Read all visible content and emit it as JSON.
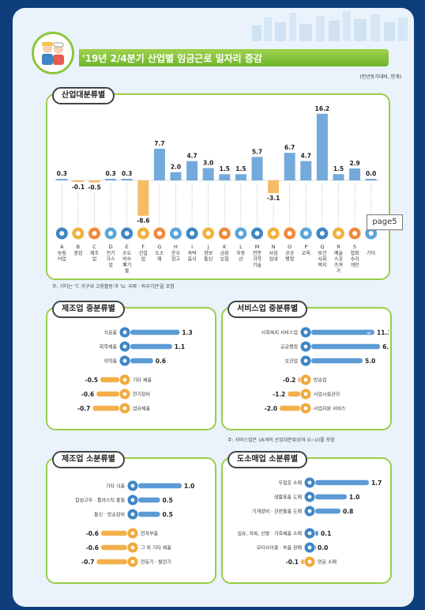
{
  "title": "'19년 2/4분기 산업별 임금근로 일자리 증감",
  "unit": "(전년동기대비, 만개)",
  "page_label": "page5",
  "note1": "주: 기타는 'T. 가구내 고용활동'과 'U. 국제 · 외국기관'을 포함",
  "note2": "주: 서비스업은 16개의 산업대분류(E와 G~U)를 포함",
  "colors": {
    "positive": "#5b9bd5",
    "negative": "#f4b04a",
    "frame": "#0f3f7a",
    "green": "#8cc63f"
  },
  "chart_data": [
    {
      "type": "bar",
      "title": "산업대분류별",
      "codes": [
        "A",
        "B",
        "C",
        "D",
        "E",
        "F",
        "G",
        "H",
        "I",
        "J",
        "K",
        "L",
        "M",
        "N",
        "O",
        "P",
        "Q",
        "R",
        "S",
        ""
      ],
      "categories": [
        "농림어업",
        "광업",
        "제조업",
        "전기가스업",
        "수도하수폐기물",
        "건설업",
        "도소매",
        "운수창고",
        "숙박음식",
        "정보통신",
        "금융보험",
        "부동산",
        "전문과학기술",
        "사업임대",
        "공공행정",
        "교육",
        "보건사회복지",
        "예술스포츠여가",
        "협회수리개인",
        "기타"
      ],
      "values": [
        0.3,
        -0.1,
        -0.5,
        0.3,
        0.3,
        -8.6,
        7.7,
        2.0,
        4.7,
        3.0,
        1.5,
        1.5,
        5.7,
        -3.1,
        6.7,
        4.7,
        16.2,
        1.5,
        2.9,
        0.0
      ],
      "labels": [
        "0.3",
        "-0.1",
        "-0.5",
        "0.3",
        "0.3",
        "-8.6",
        "7.7",
        "2.0",
        "4.7",
        "3.0",
        "1.5",
        "1.5",
        "5.7",
        "-3.1",
        "6.7",
        "4.7",
        "16.2",
        "1.5",
        "2.9",
        "0.0"
      ],
      "icons": [
        "leaf-icon",
        "mine-icon",
        "gear-icon",
        "lightning-icon",
        "water-icon",
        "building-icon",
        "cart-icon",
        "truck-icon",
        "food-icon",
        "phone-icon",
        "bank-icon",
        "house-icon",
        "lab-icon",
        "briefcase-icon",
        "flag-icon",
        "book-icon",
        "medical-icon",
        "art-icon",
        "people-icon",
        "smile-icon"
      ]
    },
    {
      "type": "bar",
      "title": "제조업 중분류별",
      "categories": [
        "식료품",
        "화학제품",
        "의약품",
        "기타 제품",
        "전기장비",
        "섬유제품"
      ],
      "values": [
        1.3,
        1.1,
        0.6,
        -0.5,
        -0.6,
        -0.7
      ],
      "labels": [
        "1.3",
        "1.1",
        "0.6",
        "-0.5",
        "-0.6",
        "-0.7"
      ],
      "icons": [
        "food-icon",
        "flask-icon",
        "pill-icon",
        "box-icon",
        "battery-icon",
        "shirt-icon"
      ]
    },
    {
      "type": "bar",
      "title": "서비스업 중분류별",
      "categories": [
        "사회복지 서비스업",
        "공공행정",
        "보건업",
        "방송업",
        "사업시설관리",
        "사업지원 서비스"
      ],
      "values": [
        11.3,
        6.7,
        5.0,
        -0.2,
        -1.2,
        -2.0
      ],
      "labels": [
        "11.3",
        "6.7",
        "5.0",
        "-0.2",
        "-1.2",
        "-2.0"
      ],
      "broken": [
        true,
        false,
        false,
        false,
        false,
        false
      ],
      "icons": [
        "heart-hand-icon",
        "flag-icon",
        "medical-icon",
        "mic-icon",
        "building-icon",
        "handshake-icon"
      ]
    },
    {
      "type": "bar",
      "title": "제조업 소분류별",
      "categories": [
        "기타 식품",
        "합성고무 · 플라스틱 물질",
        "통신 · 방송장비",
        "전자부품",
        "그 외 기타 제품",
        "전동기 · 발전기"
      ],
      "values": [
        1.0,
        0.5,
        0.5,
        -0.6,
        -0.6,
        -0.7
      ],
      "labels": [
        "1.0",
        "0.5",
        "0.5",
        "-0.6",
        "-0.6",
        "-0.7"
      ],
      "icons": [
        "fish-icon",
        "recycle-icon",
        "satellite-icon",
        "chip-icon",
        "cube-icon",
        "motor-icon"
      ]
    },
    {
      "type": "bar",
      "title": "도소매업 소분류별",
      "categories": [
        "무점포 소매",
        "생활용품 도매",
        "기계장비 · 관련물품 도매",
        "섬유, 의복, 신발 · 가죽제품 소매",
        "모터사이클 · 부품 판매",
        "연료 소매"
      ],
      "values": [
        1.7,
        1.0,
        0.8,
        0.1,
        0.0,
        -0.1
      ],
      "labels": [
        "1.7",
        "1.0",
        "0.8",
        "0.1",
        "0.0",
        "-0.1"
      ],
      "icons": [
        "laptop-icon",
        "shopping-bag-icon",
        "tool-icon",
        "shirt-icon",
        "motorcycle-icon",
        "fuel-icon"
      ]
    }
  ]
}
